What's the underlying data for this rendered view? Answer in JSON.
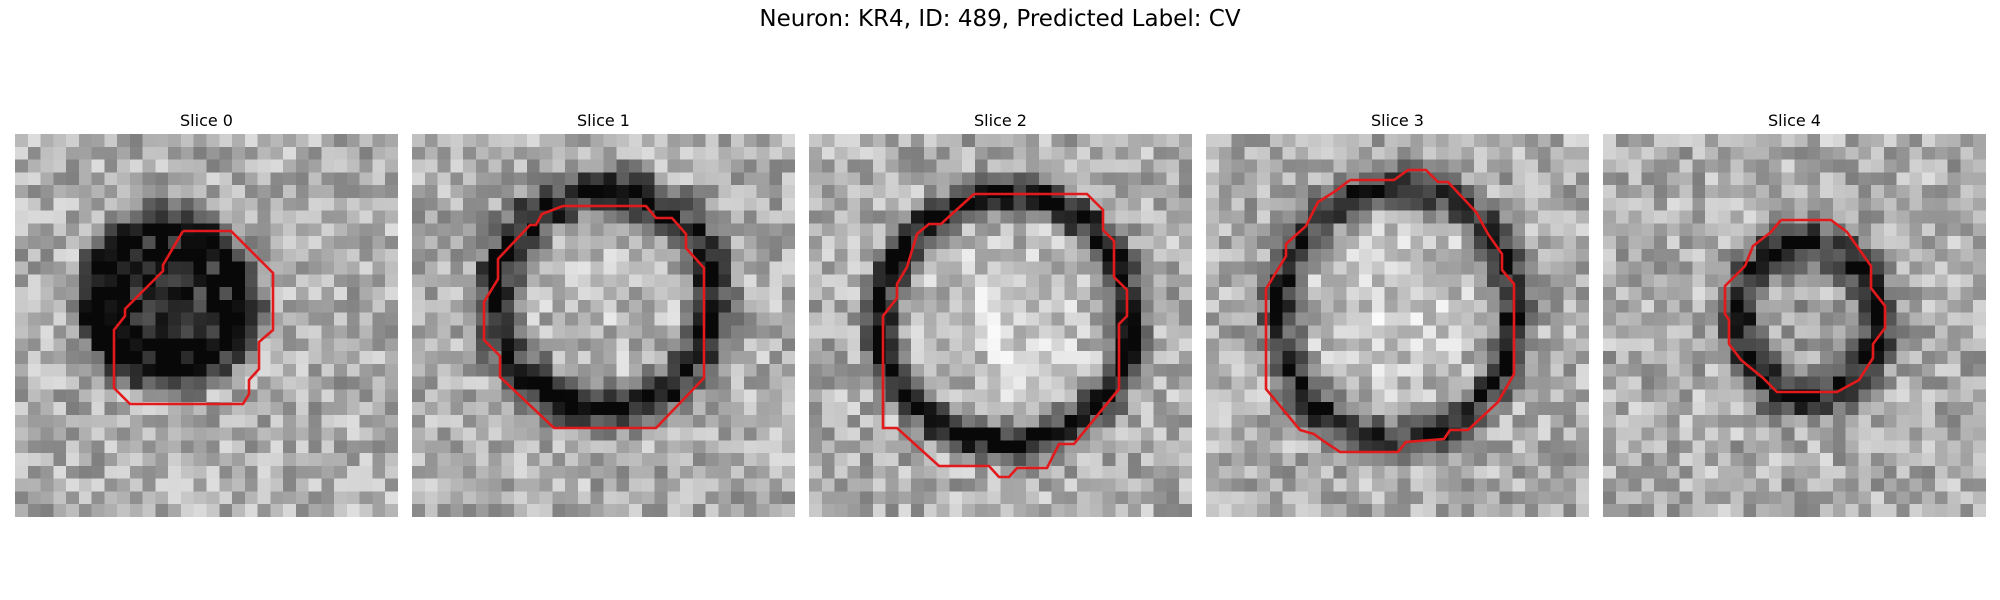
{
  "figure": {
    "title": "Neuron: KR4, ID: 489, Predicted Label: CV"
  },
  "panels": [
    {
      "label": "Slice 0",
      "contour_color": "#e31a1c"
    },
    {
      "label": "Slice 1",
      "contour_color": "#e31a1c"
    },
    {
      "label": "Slice 2",
      "contour_color": "#e31a1c"
    },
    {
      "label": "Slice 3",
      "contour_color": "#e31a1c"
    },
    {
      "label": "Slice 4",
      "contour_color": "#e31a1c"
    }
  ]
}
